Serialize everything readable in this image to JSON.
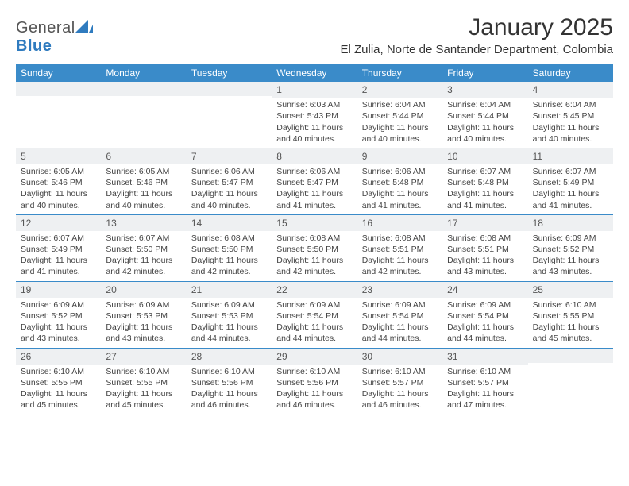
{
  "brand": {
    "part1": "General",
    "part2": "Blue"
  },
  "title": "January 2025",
  "location": "El Zulia, Norte de Santander Department, Colombia",
  "colors": {
    "header_bg": "#3a8bc9",
    "daynum_bg": "#eef0f2",
    "week_border": "#3a8bc9",
    "text": "#333333",
    "logo_blue": "#2f7bbf"
  },
  "weekdays": [
    "Sunday",
    "Monday",
    "Tuesday",
    "Wednesday",
    "Thursday",
    "Friday",
    "Saturday"
  ],
  "weeks": [
    [
      {
        "n": "",
        "sr": "",
        "ss": "",
        "dl": ""
      },
      {
        "n": "",
        "sr": "",
        "ss": "",
        "dl": ""
      },
      {
        "n": "",
        "sr": "",
        "ss": "",
        "dl": ""
      },
      {
        "n": "1",
        "sr": "Sunrise: 6:03 AM",
        "ss": "Sunset: 5:43 PM",
        "dl": "Daylight: 11 hours and 40 minutes."
      },
      {
        "n": "2",
        "sr": "Sunrise: 6:04 AM",
        "ss": "Sunset: 5:44 PM",
        "dl": "Daylight: 11 hours and 40 minutes."
      },
      {
        "n": "3",
        "sr": "Sunrise: 6:04 AM",
        "ss": "Sunset: 5:44 PM",
        "dl": "Daylight: 11 hours and 40 minutes."
      },
      {
        "n": "4",
        "sr": "Sunrise: 6:04 AM",
        "ss": "Sunset: 5:45 PM",
        "dl": "Daylight: 11 hours and 40 minutes."
      }
    ],
    [
      {
        "n": "5",
        "sr": "Sunrise: 6:05 AM",
        "ss": "Sunset: 5:46 PM",
        "dl": "Daylight: 11 hours and 40 minutes."
      },
      {
        "n": "6",
        "sr": "Sunrise: 6:05 AM",
        "ss": "Sunset: 5:46 PM",
        "dl": "Daylight: 11 hours and 40 minutes."
      },
      {
        "n": "7",
        "sr": "Sunrise: 6:06 AM",
        "ss": "Sunset: 5:47 PM",
        "dl": "Daylight: 11 hours and 40 minutes."
      },
      {
        "n": "8",
        "sr": "Sunrise: 6:06 AM",
        "ss": "Sunset: 5:47 PM",
        "dl": "Daylight: 11 hours and 41 minutes."
      },
      {
        "n": "9",
        "sr": "Sunrise: 6:06 AM",
        "ss": "Sunset: 5:48 PM",
        "dl": "Daylight: 11 hours and 41 minutes."
      },
      {
        "n": "10",
        "sr": "Sunrise: 6:07 AM",
        "ss": "Sunset: 5:48 PM",
        "dl": "Daylight: 11 hours and 41 minutes."
      },
      {
        "n": "11",
        "sr": "Sunrise: 6:07 AM",
        "ss": "Sunset: 5:49 PM",
        "dl": "Daylight: 11 hours and 41 minutes."
      }
    ],
    [
      {
        "n": "12",
        "sr": "Sunrise: 6:07 AM",
        "ss": "Sunset: 5:49 PM",
        "dl": "Daylight: 11 hours and 41 minutes."
      },
      {
        "n": "13",
        "sr": "Sunrise: 6:07 AM",
        "ss": "Sunset: 5:50 PM",
        "dl": "Daylight: 11 hours and 42 minutes."
      },
      {
        "n": "14",
        "sr": "Sunrise: 6:08 AM",
        "ss": "Sunset: 5:50 PM",
        "dl": "Daylight: 11 hours and 42 minutes."
      },
      {
        "n": "15",
        "sr": "Sunrise: 6:08 AM",
        "ss": "Sunset: 5:50 PM",
        "dl": "Daylight: 11 hours and 42 minutes."
      },
      {
        "n": "16",
        "sr": "Sunrise: 6:08 AM",
        "ss": "Sunset: 5:51 PM",
        "dl": "Daylight: 11 hours and 42 minutes."
      },
      {
        "n": "17",
        "sr": "Sunrise: 6:08 AM",
        "ss": "Sunset: 5:51 PM",
        "dl": "Daylight: 11 hours and 43 minutes."
      },
      {
        "n": "18",
        "sr": "Sunrise: 6:09 AM",
        "ss": "Sunset: 5:52 PM",
        "dl": "Daylight: 11 hours and 43 minutes."
      }
    ],
    [
      {
        "n": "19",
        "sr": "Sunrise: 6:09 AM",
        "ss": "Sunset: 5:52 PM",
        "dl": "Daylight: 11 hours and 43 minutes."
      },
      {
        "n": "20",
        "sr": "Sunrise: 6:09 AM",
        "ss": "Sunset: 5:53 PM",
        "dl": "Daylight: 11 hours and 43 minutes."
      },
      {
        "n": "21",
        "sr": "Sunrise: 6:09 AM",
        "ss": "Sunset: 5:53 PM",
        "dl": "Daylight: 11 hours and 44 minutes."
      },
      {
        "n": "22",
        "sr": "Sunrise: 6:09 AM",
        "ss": "Sunset: 5:54 PM",
        "dl": "Daylight: 11 hours and 44 minutes."
      },
      {
        "n": "23",
        "sr": "Sunrise: 6:09 AM",
        "ss": "Sunset: 5:54 PM",
        "dl": "Daylight: 11 hours and 44 minutes."
      },
      {
        "n": "24",
        "sr": "Sunrise: 6:09 AM",
        "ss": "Sunset: 5:54 PM",
        "dl": "Daylight: 11 hours and 44 minutes."
      },
      {
        "n": "25",
        "sr": "Sunrise: 6:10 AM",
        "ss": "Sunset: 5:55 PM",
        "dl": "Daylight: 11 hours and 45 minutes."
      }
    ],
    [
      {
        "n": "26",
        "sr": "Sunrise: 6:10 AM",
        "ss": "Sunset: 5:55 PM",
        "dl": "Daylight: 11 hours and 45 minutes."
      },
      {
        "n": "27",
        "sr": "Sunrise: 6:10 AM",
        "ss": "Sunset: 5:55 PM",
        "dl": "Daylight: 11 hours and 45 minutes."
      },
      {
        "n": "28",
        "sr": "Sunrise: 6:10 AM",
        "ss": "Sunset: 5:56 PM",
        "dl": "Daylight: 11 hours and 46 minutes."
      },
      {
        "n": "29",
        "sr": "Sunrise: 6:10 AM",
        "ss": "Sunset: 5:56 PM",
        "dl": "Daylight: 11 hours and 46 minutes."
      },
      {
        "n": "30",
        "sr": "Sunrise: 6:10 AM",
        "ss": "Sunset: 5:57 PM",
        "dl": "Daylight: 11 hours and 46 minutes."
      },
      {
        "n": "31",
        "sr": "Sunrise: 6:10 AM",
        "ss": "Sunset: 5:57 PM",
        "dl": "Daylight: 11 hours and 47 minutes."
      },
      {
        "n": "",
        "sr": "",
        "ss": "",
        "dl": ""
      }
    ]
  ]
}
